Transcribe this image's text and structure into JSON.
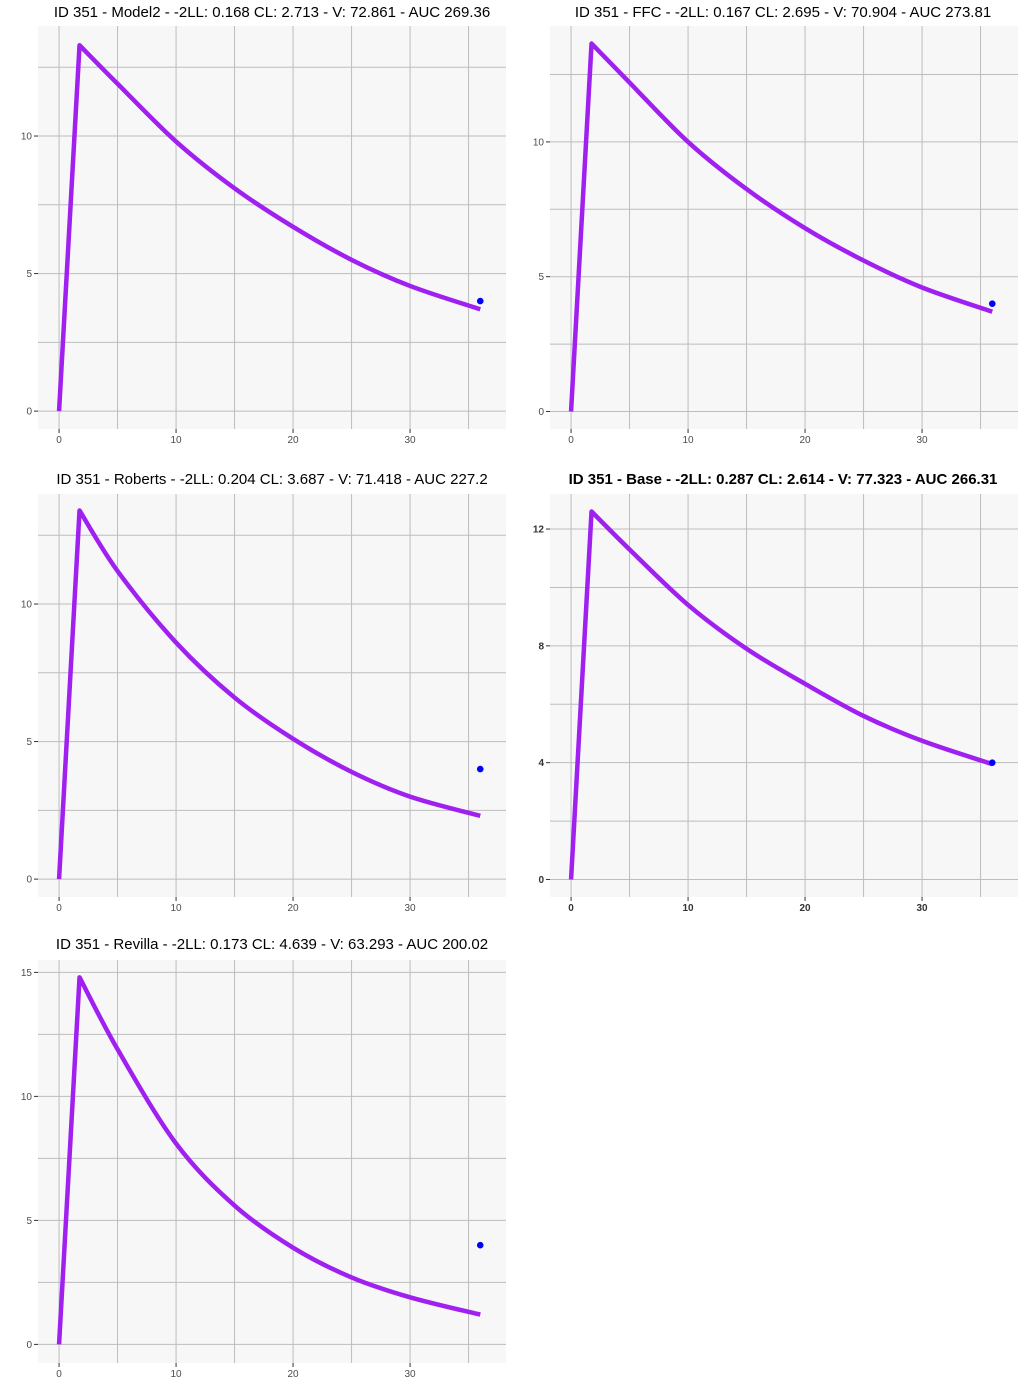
{
  "chart_data": [
    {
      "type": "line",
      "title": "ID 351 - Model2 - -2LL: 0.168 CL: 2.713 - V: 72.861 - AUC 269.36",
      "title_bold": false,
      "xlim": [
        -1.8,
        38.2
      ],
      "ylim": [
        -0.65,
        14.0
      ],
      "xticks": [
        0,
        10,
        20,
        30
      ],
      "yticks": [
        0,
        5,
        10
      ],
      "xgrid": [
        0,
        5,
        10,
        15,
        20,
        25,
        30,
        35
      ],
      "ygrid": [
        0,
        2.5,
        5,
        7.5,
        10,
        12.5
      ],
      "series": [
        {
          "name": "prediction",
          "color": "#a020f0",
          "x": [
            0,
            1.75,
            5,
            10,
            15,
            20,
            25,
            30,
            36
          ],
          "y": [
            0,
            13.3,
            11.9,
            9.8,
            8.1,
            6.7,
            5.5,
            4.55,
            3.7
          ]
        }
      ],
      "observed": [
        {
          "x": 36,
          "y": 4.0
        }
      ]
    },
    {
      "type": "line",
      "title": "ID 351 - FFC - -2LL: 0.167 CL: 2.695 - V: 70.904 - AUC 273.81",
      "title_bold": false,
      "xlim": [
        -1.8,
        38.2
      ],
      "ylim": [
        -0.65,
        14.3
      ],
      "xticks": [
        0,
        10,
        20,
        30
      ],
      "yticks": [
        0,
        5,
        10
      ],
      "xgrid": [
        0,
        5,
        10,
        15,
        20,
        25,
        30,
        35
      ],
      "ygrid": [
        0,
        2.5,
        5,
        7.5,
        10,
        12.5
      ],
      "series": [
        {
          "name": "prediction",
          "color": "#a020f0",
          "x": [
            0,
            1.75,
            5,
            10,
            15,
            20,
            25,
            30,
            36
          ],
          "y": [
            0,
            13.65,
            12.2,
            10.0,
            8.25,
            6.8,
            5.6,
            4.6,
            3.7
          ]
        }
      ],
      "observed": [
        {
          "x": 36,
          "y": 4.0
        }
      ]
    },
    {
      "type": "line",
      "title": "ID 351 - Roberts - -2LL: 0.204 CL: 3.687 - V: 71.418 - AUC 227.2",
      "title_bold": false,
      "xlim": [
        -1.8,
        38.2
      ],
      "ylim": [
        -0.65,
        14.0
      ],
      "xticks": [
        0,
        10,
        20,
        30
      ],
      "yticks": [
        0,
        5,
        10
      ],
      "xgrid": [
        0,
        5,
        10,
        15,
        20,
        25,
        30,
        35
      ],
      "ygrid": [
        0,
        2.5,
        5,
        7.5,
        10,
        12.5
      ],
      "series": [
        {
          "name": "prediction",
          "color": "#a020f0",
          "x": [
            0,
            1.75,
            5,
            10,
            15,
            20,
            25,
            30,
            36
          ],
          "y": [
            0,
            13.4,
            11.2,
            8.6,
            6.6,
            5.1,
            3.9,
            3.0,
            2.3
          ]
        }
      ],
      "observed": [
        {
          "x": 36,
          "y": 4.0
        }
      ]
    },
    {
      "type": "line",
      "title": "ID 351 - Base - -2LL: 0.287 CL: 2.614 - V: 77.323 - AUC 266.31",
      "title_bold": true,
      "xlim": [
        -1.8,
        38.2
      ],
      "ylim": [
        -0.6,
        13.2
      ],
      "xticks": [
        0,
        10,
        20,
        30
      ],
      "yticks": [
        0,
        4,
        8,
        12
      ],
      "xgrid": [
        0,
        5,
        10,
        15,
        20,
        25,
        30,
        35
      ],
      "ygrid": [
        0,
        2,
        4,
        6,
        8,
        10,
        12
      ],
      "series": [
        {
          "name": "prediction",
          "color": "#a020f0",
          "x": [
            0,
            1.75,
            5,
            10,
            15,
            20,
            25,
            30,
            36
          ],
          "y": [
            0,
            12.6,
            11.3,
            9.4,
            7.9,
            6.7,
            5.6,
            4.75,
            3.95
          ]
        }
      ],
      "observed": [
        {
          "x": 36,
          "y": 4.0
        }
      ]
    },
    {
      "type": "line",
      "title": "ID 351 - Revilla - -2LL: 0.173 CL: 4.639 - V: 63.293 - AUC 200.02",
      "title_bold": false,
      "xlim": [
        -1.8,
        38.2
      ],
      "ylim": [
        -0.75,
        15.5
      ],
      "xticks": [
        0,
        10,
        20,
        30
      ],
      "yticks": [
        0,
        5,
        10,
        15
      ],
      "xgrid": [
        0,
        5,
        10,
        15,
        20,
        25,
        30,
        35
      ],
      "ygrid": [
        0,
        2.5,
        5,
        7.5,
        10,
        12.5,
        15
      ],
      "series": [
        {
          "name": "prediction",
          "color": "#a020f0",
          "x": [
            0,
            1.75,
            5,
            10,
            15,
            20,
            25,
            30,
            36
          ],
          "y": [
            0,
            14.8,
            11.9,
            8.1,
            5.6,
            3.9,
            2.7,
            1.9,
            1.2
          ]
        }
      ],
      "observed": [
        {
          "x": 36,
          "y": 4.0
        }
      ]
    }
  ],
  "colors": {
    "panel_bg": "#f7f7f7",
    "grid": "#bdbdbd",
    "line": "#a020f0",
    "point": "#0000ff"
  }
}
